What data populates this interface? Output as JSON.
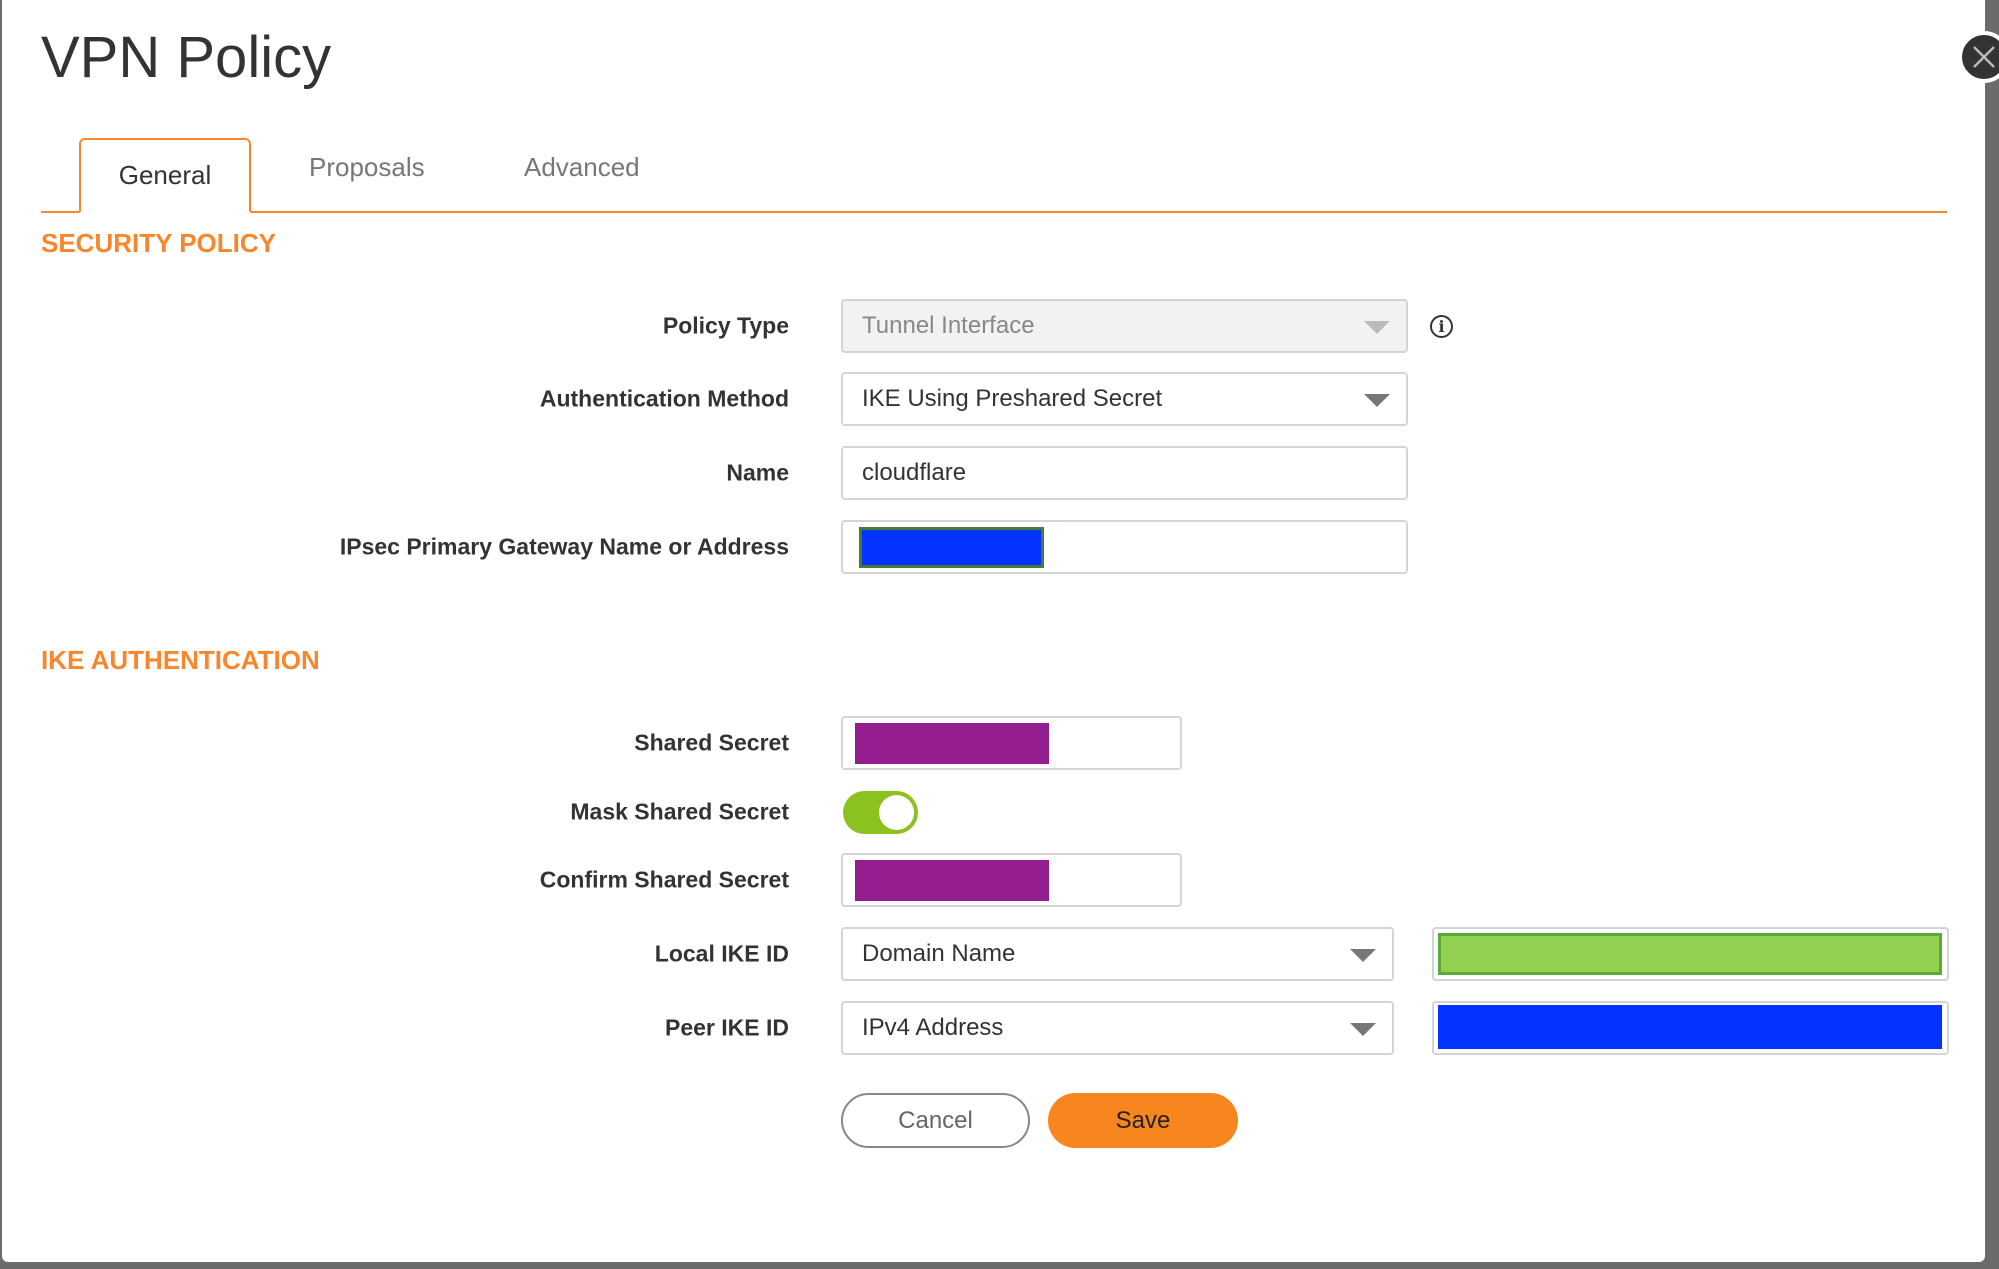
{
  "title": "VPN Policy",
  "tabs": [
    {
      "label": "General",
      "active": true
    },
    {
      "label": "Proposals"
    },
    {
      "label": "Advanced"
    }
  ],
  "security_policy": {
    "heading": "SECURITY POLICY",
    "policy_type": {
      "label": "Policy Type",
      "value": "Tunnel Interface",
      "disabled": true
    },
    "auth_method": {
      "label": "Authentication Method",
      "value": "IKE Using Preshared Secret"
    },
    "name": {
      "label": "Name",
      "value": "cloudflare"
    },
    "gateway": {
      "label": "IPsec Primary Gateway Name or Address",
      "redaction_color": "#0433ff"
    }
  },
  "ike_auth": {
    "heading": "IKE AUTHENTICATION",
    "shared_secret": {
      "label": "Shared Secret",
      "redaction_color": "#941e8f"
    },
    "mask": {
      "label": "Mask Shared Secret",
      "on": true,
      "color": "#8cc21f"
    },
    "confirm": {
      "label": "Confirm Shared Secret",
      "redaction_color": "#941e8f"
    },
    "local_ike": {
      "label": "Local IKE ID",
      "value": "Domain Name",
      "redaction_color": "#92d050"
    },
    "peer_ike": {
      "label": "Peer IKE ID",
      "value": "IPv4 Address",
      "redaction_color": "#0433ff"
    }
  },
  "buttons": {
    "cancel": "Cancel",
    "save": "Save"
  },
  "colors": {
    "accent": "#f7862c"
  }
}
